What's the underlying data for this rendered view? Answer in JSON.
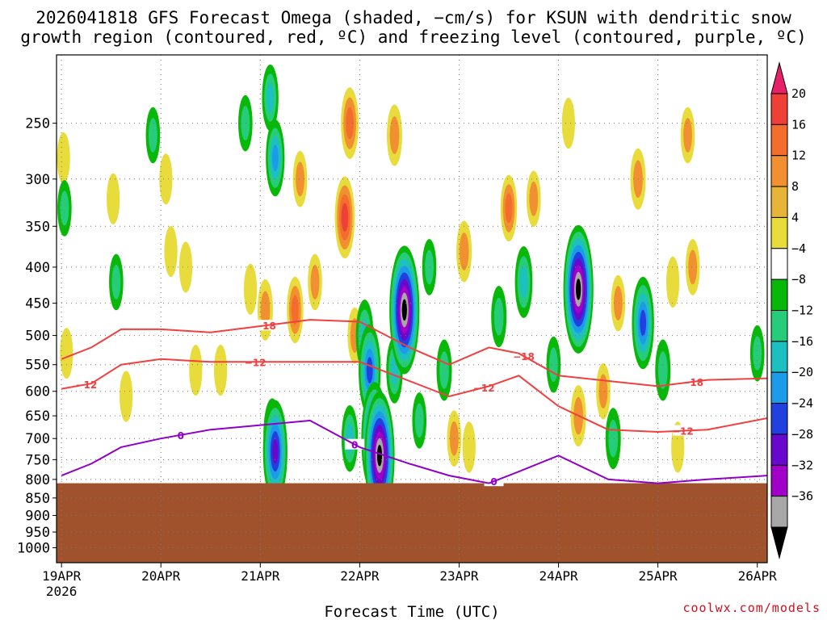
{
  "header": {
    "title_line1": "2026041818 GFS Forecast Omega (shaded, −cm/s) for KSUN with dendritic snow",
    "title_line2": "growth region (contoured, red, ºC) and freezing level (contoured, purple, ºC)"
  },
  "footer": {
    "credit": "coolwx.com/models"
  },
  "chart_data": {
    "type": "heatmap",
    "title": "2026041818 GFS Forecast Omega (shaded, −cm/s) for KSUN with dendritic snow growth region (contoured, red, ºC) and freezing level (contoured, purple, ºC)",
    "xlabel": "Forecast Time (UTC)",
    "ylabel": "",
    "x_ticks": [
      "19APR",
      "20APR",
      "21APR",
      "22APR",
      "23APR",
      "24APR",
      "25APR",
      "26APR"
    ],
    "x_tick_year": "2026",
    "x_range_days": [
      -0.05,
      7.1
    ],
    "y_ticks": [
      250,
      300,
      350,
      400,
      450,
      500,
      550,
      600,
      650,
      700,
      750,
      800,
      850,
      900,
      950,
      1000
    ],
    "y_range_hpa": [
      200,
      1050
    ],
    "surface_pressure_hpa": 810,
    "colorbar": {
      "labels": [
        "20",
        "16",
        "12",
        "8",
        "4",
        "−4",
        "−8",
        "−12",
        "−16",
        "−20",
        "−24",
        "−28",
        "−32",
        "−36"
      ],
      "colors": [
        "#e8206a",
        "#ef4038",
        "#f36d2c",
        "#f09030",
        "#e7b43a",
        "#e8dc3c",
        "#ffffff",
        "#08b808",
        "#27cc7a",
        "#1cc0c0",
        "#1c9ce8",
        "#2040e0",
        "#6808cc",
        "#a000c8",
        "#a8a8a8",
        "#000000"
      ]
    },
    "omega_cells": [
      {
        "t": 0.02,
        "p": 280,
        "v": 6
      },
      {
        "t": 0.03,
        "p": 330,
        "v": -8
      },
      {
        "t": 0.05,
        "p": 530,
        "v": 6
      },
      {
        "t": 0.52,
        "p": 320,
        "v": 6
      },
      {
        "t": 0.55,
        "p": 420,
        "v": -8
      },
      {
        "t": 0.65,
        "p": 610,
        "v": 6
      },
      {
        "t": 0.92,
        "p": 260,
        "v": -8
      },
      {
        "t": 1.05,
        "p": 300,
        "v": 6
      },
      {
        "t": 1.1,
        "p": 380,
        "v": 6
      },
      {
        "t": 1.25,
        "p": 400,
        "v": 6
      },
      {
        "t": 1.35,
        "p": 560,
        "v": 6
      },
      {
        "t": 1.6,
        "p": 560,
        "v": 6
      },
      {
        "t": 1.85,
        "p": 250,
        "v": -8
      },
      {
        "t": 1.9,
        "p": 430,
        "v": 6
      },
      {
        "t": 2.05,
        "p": 460,
        "v": 10
      },
      {
        "t": 2.1,
        "p": 230,
        "v": -12
      },
      {
        "t": 2.15,
        "p": 280,
        "v": -16
      },
      {
        "t": 2.12,
        "p": 690,
        "v": -14
      },
      {
        "t": 2.15,
        "p": 730,
        "v": -26
      },
      {
        "t": 2.35,
        "p": 460,
        "v": 12
      },
      {
        "t": 2.4,
        "p": 300,
        "v": 8
      },
      {
        "t": 2.55,
        "p": 420,
        "v": 8
      },
      {
        "t": 2.85,
        "p": 340,
        "v": 18
      },
      {
        "t": 2.9,
        "p": 250,
        "v": 14
      },
      {
        "t": 2.95,
        "p": 500,
        "v": 8
      },
      {
        "t": 2.9,
        "p": 700,
        "v": -12
      },
      {
        "t": 3.05,
        "p": 500,
        "v": -14
      },
      {
        "t": 3.1,
        "p": 560,
        "v": -22
      },
      {
        "t": 3.15,
        "p": 700,
        "v": -30
      },
      {
        "t": 3.2,
        "p": 740,
        "v": -36
      },
      {
        "t": 3.35,
        "p": 260,
        "v": 10
      },
      {
        "t": 3.35,
        "p": 560,
        "v": -12
      },
      {
        "t": 3.45,
        "p": 460,
        "v": -36
      },
      {
        "t": 3.6,
        "p": 660,
        "v": -8
      },
      {
        "t": 3.7,
        "p": 400,
        "v": -8
      },
      {
        "t": 3.85,
        "p": 560,
        "v": -10
      },
      {
        "t": 3.95,
        "p": 700,
        "v": 8
      },
      {
        "t": 4.05,
        "p": 380,
        "v": 10
      },
      {
        "t": 4.1,
        "p": 720,
        "v": 6
      },
      {
        "t": 4.4,
        "p": 470,
        "v": -10
      },
      {
        "t": 4.5,
        "p": 330,
        "v": 12
      },
      {
        "t": 4.65,
        "p": 420,
        "v": -14
      },
      {
        "t": 4.75,
        "p": 320,
        "v": 8
      },
      {
        "t": 4.95,
        "p": 550,
        "v": -8
      },
      {
        "t": 5.1,
        "p": 250,
        "v": 6
      },
      {
        "t": 5.2,
        "p": 430,
        "v": -36
      },
      {
        "t": 5.2,
        "p": 650,
        "v": 10
      },
      {
        "t": 5.45,
        "p": 600,
        "v": 8
      },
      {
        "t": 5.55,
        "p": 700,
        "v": -10
      },
      {
        "t": 5.6,
        "p": 450,
        "v": 8
      },
      {
        "t": 5.8,
        "p": 300,
        "v": 10
      },
      {
        "t": 5.85,
        "p": 480,
        "v": -22
      },
      {
        "t": 6.05,
        "p": 560,
        "v": -10
      },
      {
        "t": 6.15,
        "p": 420,
        "v": 6
      },
      {
        "t": 6.2,
        "p": 720,
        "v": 6
      },
      {
        "t": 6.3,
        "p": 260,
        "v": 8
      },
      {
        "t": 6.35,
        "p": 400,
        "v": 8
      },
      {
        "t": 7.0,
        "p": 530,
        "v": -8
      }
    ],
    "series": [
      {
        "name": "dendritic snow growth top",
        "label": "−18",
        "color": "#f04040",
        "t": [
          0,
          0.3,
          0.6,
          1.0,
          1.5,
          2.0,
          2.5,
          3.0,
          3.5,
          3.9,
          4.3,
          4.6,
          5.0,
          5.5,
          6.0,
          6.5,
          7.1
        ],
        "p": [
          540,
          520,
          490,
          490,
          495,
          485,
          475,
          478,
          520,
          550,
          520,
          530,
          570,
          580,
          590,
          578,
          575
        ]
      },
      {
        "name": "dendritic snow growth bottom",
        "label": "−12",
        "color": "#f04040",
        "t": [
          0,
          0.3,
          0.6,
          1.0,
          1.5,
          2.0,
          2.5,
          3.0,
          3.5,
          3.9,
          4.3,
          4.6,
          5.0,
          5.5,
          6.0,
          6.5,
          7.1
        ],
        "p": [
          595,
          585,
          550,
          540,
          545,
          545,
          545,
          545,
          580,
          610,
          590,
          570,
          630,
          680,
          685,
          680,
          655
        ]
      },
      {
        "name": "freezing level",
        "label": "0",
        "color": "#9000c8",
        "t": [
          0,
          0.3,
          0.6,
          1.0,
          1.5,
          2.0,
          2.5,
          3.0,
          3.5,
          3.9,
          4.3,
          4.6,
          5.0,
          5.5,
          6.0,
          6.5,
          7.1
        ],
        "p": [
          790,
          760,
          720,
          700,
          680,
          670,
          660,
          720,
          760,
          790,
          810,
          780,
          740,
          800,
          810,
          800,
          790
        ]
      }
    ],
    "contour_labels": [
      {
        "series": 0,
        "t": 2.05,
        "text": "−18"
      },
      {
        "series": 0,
        "t": 4.65,
        "text": "−18"
      },
      {
        "series": 0,
        "t": 6.35,
        "text": "−18"
      },
      {
        "series": 1,
        "t": 0.25,
        "text": "−12"
      },
      {
        "series": 1,
        "t": 1.95,
        "text": "−12"
      },
      {
        "series": 1,
        "t": 4.25,
        "text": "−12"
      },
      {
        "series": 1,
        "t": 6.25,
        "text": "−12"
      },
      {
        "series": 2,
        "t": 1.2,
        "text": "0"
      },
      {
        "series": 2,
        "t": 2.95,
        "text": "0"
      },
      {
        "series": 2,
        "t": 4.35,
        "text": "0"
      }
    ]
  }
}
